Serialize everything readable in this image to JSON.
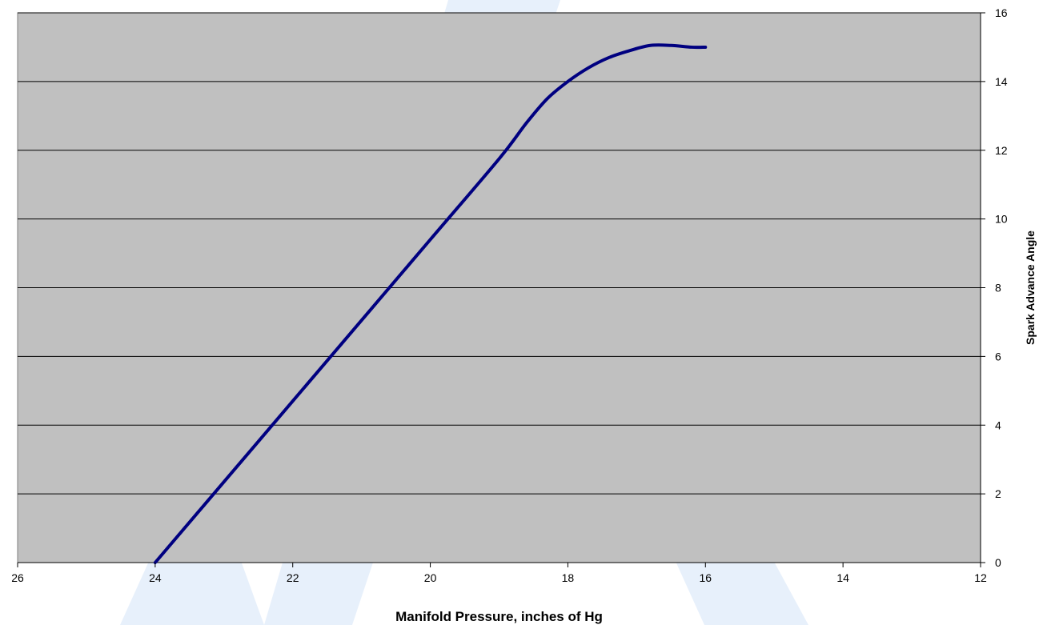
{
  "chart_data": {
    "type": "line",
    "title": "",
    "xlabel": "Manifold Pressure, inches of Hg",
    "ylabel": "Spark Advance Angle",
    "xlim": [
      26,
      12
    ],
    "ylim": [
      0,
      16
    ],
    "x_reversed": true,
    "y_axis_side": "right",
    "x_ticks": [
      26,
      24,
      22,
      20,
      18,
      16,
      14,
      12
    ],
    "y_ticks": [
      0,
      2,
      4,
      6,
      8,
      10,
      12,
      14,
      16
    ],
    "grid": "horizontal",
    "legend": "none",
    "series": [
      {
        "x": [
          24,
          23,
          22,
          21,
          20,
          19,
          18.6,
          18.3,
          18,
          17.7,
          17.4,
          17.1,
          16.8,
          16.5,
          16.2,
          16
        ],
        "y": [
          0,
          2.35,
          4.7,
          7.05,
          9.4,
          11.75,
          12.8,
          13.5,
          14.0,
          14.4,
          14.7,
          14.9,
          15.05,
          15.05,
          15.0,
          15.0
        ],
        "color": "#000080"
      }
    ]
  },
  "colors": {
    "plot_background": "#c0c0c0",
    "gridline": "#000000",
    "series_line": "#000080",
    "watermark": "#d4e3f8"
  }
}
